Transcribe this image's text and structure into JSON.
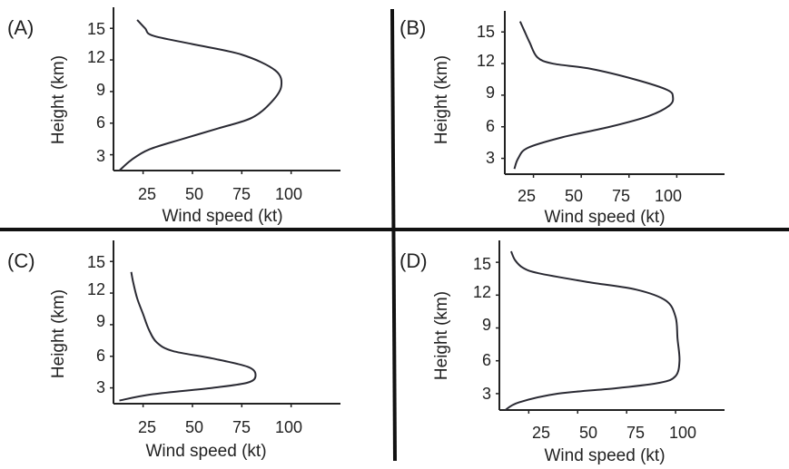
{
  "colors": {
    "axis": "#222222",
    "divider": "#111111",
    "line": "#2a2a33"
  },
  "chart_data": [
    {
      "type": "line",
      "panel_label": "(A)",
      "xlabel": "Wind speed (kt)",
      "ylabel": "Height (km)",
      "xlim": [
        10,
        125
      ],
      "ylim": [
        1.5,
        17
      ],
      "xticks": [
        25,
        50,
        75,
        100
      ],
      "yticks": [
        3,
        6,
        9,
        12,
        15
      ],
      "grid": false,
      "points": [
        [
          13,
          1.5
        ],
        [
          19,
          2.5
        ],
        [
          28,
          3.5
        ],
        [
          45,
          4.5
        ],
        [
          63,
          5.5
        ],
        [
          80,
          6.5
        ],
        [
          90,
          8
        ],
        [
          95,
          9.5
        ],
        [
          92,
          11
        ],
        [
          75,
          12.5
        ],
        [
          50,
          13.5
        ],
        [
          30,
          14.3
        ],
        [
          26,
          15
        ],
        [
          22,
          15.8
        ]
      ]
    },
    {
      "type": "line",
      "panel_label": "(B)",
      "xlabel": "Wind speed (kt)",
      "ylabel": "Height (km)",
      "xlim": [
        10,
        125
      ],
      "ylim": [
        1.5,
        17
      ],
      "xticks": [
        25,
        50,
        75,
        100
      ],
      "yticks": [
        3,
        6,
        9,
        12,
        15
      ],
      "grid": false,
      "points": [
        [
          15,
          2
        ],
        [
          17,
          3
        ],
        [
          22,
          4
        ],
        [
          40,
          5
        ],
        [
          65,
          6
        ],
        [
          85,
          7
        ],
        [
          96,
          8
        ],
        [
          98,
          8.8
        ],
        [
          95,
          9.5
        ],
        [
          78,
          10.5
        ],
        [
          55,
          11.5
        ],
        [
          35,
          12
        ],
        [
          27,
          12.6
        ],
        [
          23,
          14
        ],
        [
          20,
          15.2
        ],
        [
          18,
          16
        ]
      ]
    },
    {
      "type": "line",
      "panel_label": "(C)",
      "xlabel": "Wind speed (kt)",
      "ylabel": "Height (km)",
      "xlim": [
        10,
        125
      ],
      "ylim": [
        1.5,
        17
      ],
      "xticks": [
        25,
        50,
        75,
        100
      ],
      "yticks": [
        3,
        6,
        9,
        12,
        15
      ],
      "grid": false,
      "points": [
        [
          13,
          1.8
        ],
        [
          30,
          2.4
        ],
        [
          60,
          3
        ],
        [
          78,
          3.5
        ],
        [
          82,
          4.2
        ],
        [
          78,
          5
        ],
        [
          60,
          5.8
        ],
        [
          40,
          6.5
        ],
        [
          32,
          7.3
        ],
        [
          28,
          8.5
        ],
        [
          25,
          10
        ],
        [
          22,
          11.5
        ],
        [
          20,
          13
        ],
        [
          19,
          14
        ]
      ]
    },
    {
      "type": "line",
      "panel_label": "(D)",
      "xlabel": "Wind speed (kt)",
      "ylabel": "Height (km)",
      "xlim": [
        10,
        125
      ],
      "ylim": [
        1.5,
        17
      ],
      "xticks": [
        25,
        50,
        75,
        100
      ],
      "yticks": [
        3,
        6,
        9,
        12,
        15
      ],
      "grid": false,
      "points": [
        [
          13,
          1.5
        ],
        [
          20,
          2.2
        ],
        [
          40,
          3
        ],
        [
          70,
          3.5
        ],
        [
          92,
          4
        ],
        [
          100,
          4.6
        ],
        [
          102,
          6
        ],
        [
          101,
          8
        ],
        [
          100,
          10
        ],
        [
          95,
          11.5
        ],
        [
          80,
          12.5
        ],
        [
          55,
          13.2
        ],
        [
          30,
          14
        ],
        [
          22,
          14.5
        ],
        [
          18,
          15.2
        ],
        [
          16,
          16
        ]
      ]
    }
  ]
}
